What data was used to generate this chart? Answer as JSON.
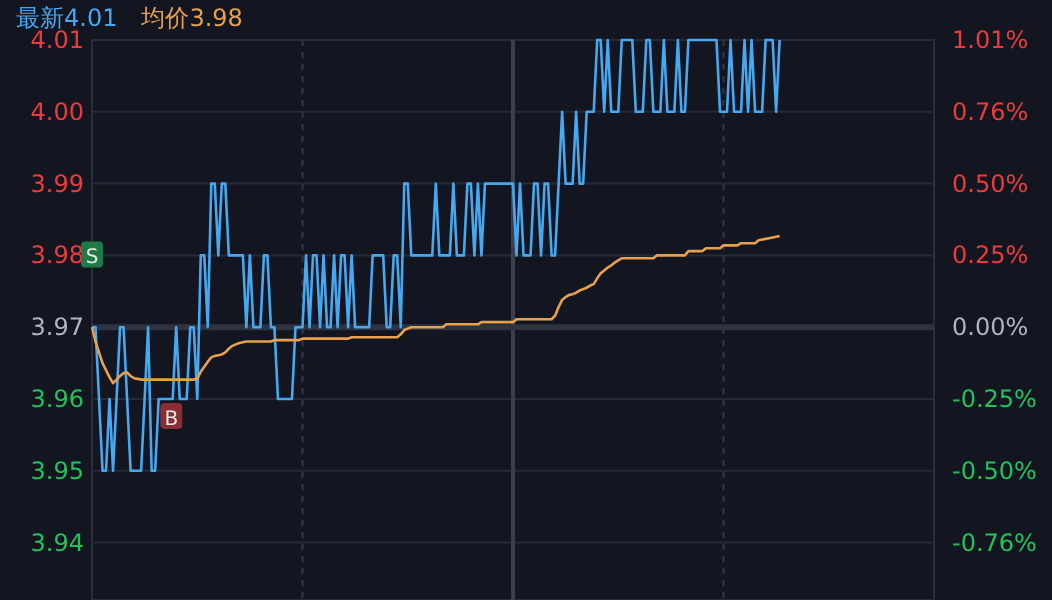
{
  "chart_data": {
    "type": "line",
    "annotations": [
      "最新4.01",
      "均价3.98",
      {
        "text": "S",
        "y": 3.98
      },
      {
        "text": "B",
        "y": 3.96
      }
    ],
    "categories": [
      null,
      null,
      null,
      null,
      null,
      null,
      null,
      null,
      null,
      null,
      null,
      null,
      null,
      null,
      null,
      null,
      null,
      null,
      null,
      null,
      null,
      null,
      null,
      null,
      null,
      null,
      null,
      null,
      null,
      null,
      null,
      null,
      null,
      null,
      null,
      null,
      null,
      null,
      null,
      null,
      null,
      null,
      null,
      null,
      null,
      null,
      null,
      null,
      null,
      null,
      null,
      null,
      null,
      null,
      null,
      null,
      null,
      null,
      null,
      null,
      null,
      null,
      null,
      null,
      null,
      null,
      null,
      null,
      null,
      null,
      null,
      null,
      null,
      null,
      null,
      null,
      null,
      null,
      null,
      null,
      null,
      null,
      null,
      null,
      null,
      null,
      null,
      null,
      null,
      null,
      null,
      null,
      null,
      null,
      null,
      null,
      null,
      null,
      null,
      null,
      null,
      null,
      null,
      null,
      null,
      null,
      null,
      null,
      null,
      null,
      null,
      null,
      null,
      null,
      null,
      null,
      null,
      null,
      null,
      null,
      null,
      null,
      null,
      null,
      null,
      null,
      null,
      null,
      null,
      null,
      null,
      null,
      null,
      null,
      null,
      null,
      null,
      null,
      null,
      null,
      null,
      null,
      null,
      null,
      null,
      null,
      null,
      null,
      null,
      null,
      null,
      null,
      null,
      null,
      null,
      null,
      null,
      null,
      null,
      null,
      null,
      null,
      null,
      null,
      null,
      null,
      null,
      null,
      null,
      null,
      null,
      null,
      null,
      null,
      null,
      null,
      null,
      null,
      null,
      null,
      null,
      null,
      null,
      null,
      null,
      null,
      null,
      null,
      null,
      null,
      null,
      null,
      null,
      null,
      null,
      null,
      null
    ],
    "ylim": [
      3.932,
      4.01
    ],
    "yticks": [
      3.94,
      3.95,
      3.96,
      3.97,
      3.98,
      3.99,
      {
        "value": 4.0,
        "label": "4.00"
      },
      4.01
    ],
    "y2lim": [
      -0.957,
      1.008
    ],
    "y2ticks": [
      {
        "value": -0.756,
        "label": "-0.76%"
      },
      {
        "value": -0.504,
        "label": "-0.50%"
      },
      {
        "value": -0.252,
        "label": "-0.25%"
      },
      {
        "value": 0,
        "label": "0.00%"
      },
      {
        "value": 0.252,
        "label": "0.25%"
      },
      {
        "value": 0.504,
        "label": "0.50%"
      },
      {
        "value": 0.756,
        "label": "0.76%"
      },
      {
        "value": 1.008,
        "label": "1.01%"
      }
    ],
    "grid": true,
    "marker": "none",
    "line_style": "solid",
    "ref_lines": [
      {
        "axis": "y",
        "value": 3.97
      }
    ],
    "series": [
      {
        "color": "#45a8f0",
        "values": [
          3.97,
          3.97,
          3.96,
          3.95,
          3.95,
          3.96,
          3.95,
          3.96,
          3.97,
          3.97,
          3.96,
          3.95,
          3.95,
          3.95,
          3.95,
          3.96,
          3.97,
          3.95,
          3.95,
          3.96,
          3.96,
          3.96,
          3.96,
          3.96,
          3.97,
          3.96,
          3.96,
          3.96,
          3.97,
          3.97,
          3.96,
          3.98,
          3.98,
          3.97,
          3.99,
          3.99,
          3.98,
          3.99,
          3.99,
          3.98,
          3.98,
          3.98,
          3.98,
          3.98,
          3.97,
          3.98,
          3.97,
          3.97,
          3.97,
          3.98,
          3.98,
          3.97,
          3.97,
          3.96,
          3.96,
          3.96,
          3.96,
          3.96,
          3.97,
          3.97,
          3.97,
          3.98,
          3.97,
          3.98,
          3.98,
          3.97,
          3.98,
          3.97,
          3.97,
          3.98,
          3.97,
          3.98,
          3.98,
          3.97,
          3.98,
          3.97,
          3.97,
          3.97,
          3.97,
          3.97,
          3.98,
          3.98,
          3.98,
          3.98,
          3.97,
          3.97,
          3.98,
          3.98,
          3.97,
          3.99,
          3.99,
          3.98,
          3.98,
          3.98,
          3.98,
          3.98,
          3.98,
          3.98,
          3.99,
          3.98,
          3.98,
          3.98,
          3.98,
          3.99,
          3.98,
          3.98,
          3.98,
          3.99,
          3.99,
          3.98,
          3.99,
          3.98,
          3.99,
          3.99,
          3.99,
          3.99,
          3.99,
          3.99,
          3.99,
          3.99,
          3.99,
          3.98,
          3.99,
          3.98,
          3.98,
          3.98,
          3.99,
          3.99,
          3.98,
          3.99,
          3.99,
          3.98,
          3.98,
          3.99,
          4.0,
          3.99,
          3.99,
          3.99,
          4.0,
          3.99,
          3.99,
          4.0,
          4.0,
          4.0,
          4.01,
          4.01,
          4.0,
          4.01,
          4.0,
          4.0,
          4.0,
          4.01,
          4.01,
          4.01,
          4.01,
          4.0,
          4.0,
          4.0,
          4.01,
          4.01,
          4.0,
          4.0,
          4.0,
          4.01,
          4.0,
          4.0,
          4.0,
          4.01,
          4.0,
          4.0,
          4.01,
          4.01,
          4.01,
          4.01,
          4.01,
          4.01,
          4.01,
          4.01,
          4.01,
          4.0,
          4.0,
          4.0,
          4.01,
          4.0,
          4.0,
          4.0,
          4.01,
          4.0,
          4.01,
          4.0,
          4.0,
          4.0,
          4.01,
          4.01,
          4.01,
          4.0,
          4.01
        ]
      },
      {
        "color": "#e8a04c",
        "values": [
          3.97,
          3.968,
          3.9665,
          3.965,
          3.964,
          3.963,
          3.9622,
          3.9627,
          3.9632,
          3.9636,
          3.9637,
          3.9632,
          3.9629,
          3.9628,
          3.9627,
          3.9627,
          3.9627,
          3.9627,
          3.9627,
          3.9627,
          3.9627,
          3.9627,
          3.9627,
          3.9627,
          3.9627,
          3.9627,
          3.9627,
          3.9627,
          3.9627,
          3.9627,
          3.9628,
          3.9638,
          3.9645,
          3.9652,
          3.9658,
          3.966,
          3.9661,
          3.9662,
          3.9665,
          3.967,
          3.9674,
          3.9676,
          3.9678,
          3.9679,
          3.968,
          3.968,
          3.968,
          3.968,
          3.968,
          3.968,
          3.968,
          3.968,
          3.9682,
          3.9682,
          3.9682,
          3.9682,
          3.9682,
          3.9682,
          3.9682,
          3.9682,
          3.9684,
          3.9684,
          3.9684,
          3.9684,
          3.9684,
          3.9684,
          3.9684,
          3.9684,
          3.9684,
          3.9684,
          3.9684,
          3.9684,
          3.9684,
          3.9684,
          3.9686,
          3.9686,
          3.9686,
          3.9686,
          3.9686,
          3.9686,
          3.9686,
          3.9686,
          3.9686,
          3.9686,
          3.9686,
          3.9686,
          3.9686,
          3.9686,
          3.969,
          3.9696,
          3.9698,
          3.97,
          3.97,
          3.97,
          3.97,
          3.97,
          3.97,
          3.97,
          3.97,
          3.97,
          3.97,
          3.9704,
          3.9704,
          3.9704,
          3.9704,
          3.9704,
          3.9704,
          3.9704,
          3.9704,
          3.9704,
          3.9704,
          3.9707,
          3.9707,
          3.9707,
          3.9707,
          3.9707,
          3.9707,
          3.9707,
          3.9707,
          3.9707,
          3.9707,
          3.9711,
          3.9711,
          3.9711,
          3.9711,
          3.9711,
          3.9711,
          3.9711,
          3.9711,
          3.9711,
          3.9711,
          3.9711,
          3.9716,
          3.9728,
          3.9738,
          3.9742,
          3.9745,
          3.9746,
          3.9748,
          3.9751,
          3.9753,
          3.9755,
          3.9758,
          3.976,
          3.9768,
          3.9775,
          3.9779,
          3.9783,
          3.9786,
          3.979,
          3.9793,
          3.9796,
          3.9796,
          3.9796,
          3.9796,
          3.9796,
          3.9796,
          3.9796,
          3.9796,
          3.9796,
          3.9796,
          3.98,
          3.98,
          3.98,
          3.98,
          3.98,
          3.98,
          3.98,
          3.98,
          3.98,
          3.9806,
          3.9806,
          3.9806,
          3.9806,
          3.9806,
          3.981,
          3.981,
          3.981,
          3.981,
          3.981,
          3.9814,
          3.9814,
          3.9814,
          3.9814,
          3.9814,
          3.9817,
          3.9817,
          3.9817,
          3.9817,
          3.9817,
          3.9821,
          3.9822,
          3.9823,
          3.9824,
          3.9825,
          3.9826,
          3.9827
        ]
      }
    ]
  }
}
